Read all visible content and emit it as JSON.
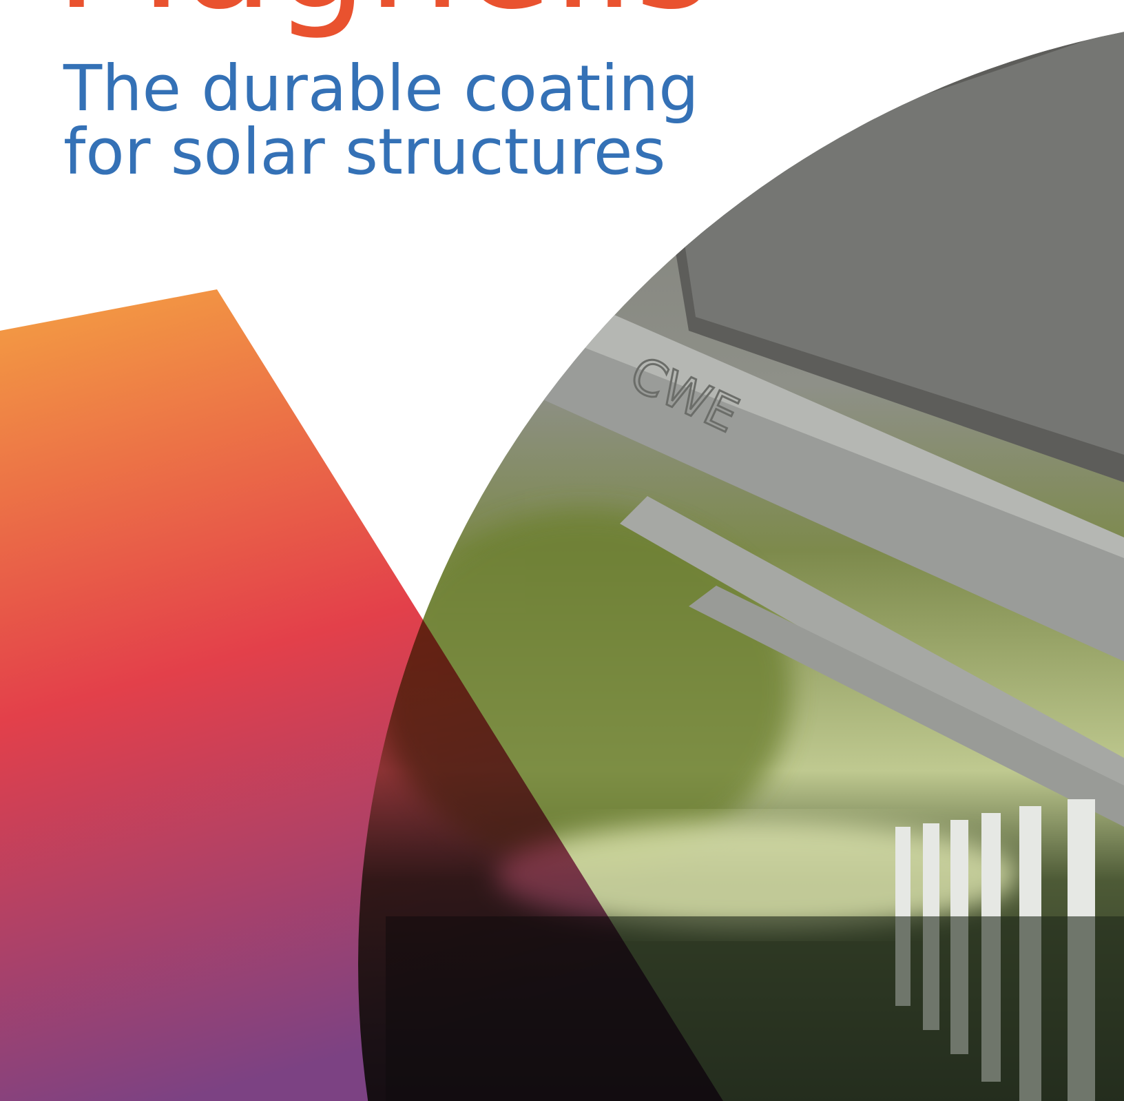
{
  "brand": "Magnelis",
  "headline": [
    "The durable coating",
    "for solar structures"
  ],
  "photo_text": "CWE"
}
